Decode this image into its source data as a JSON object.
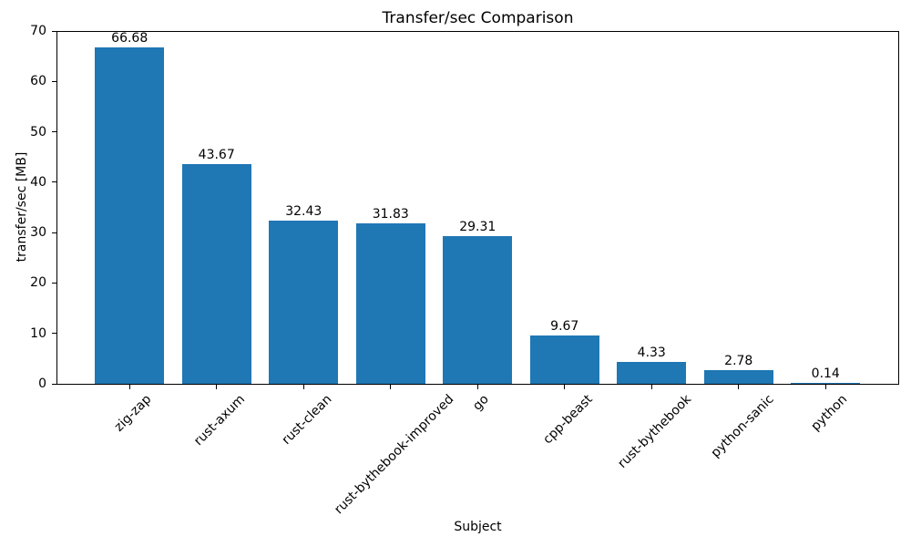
{
  "chart_data": {
    "type": "bar",
    "title": "Transfer/sec Comparison",
    "xlabel": "Subject",
    "ylabel": "transfer/sec [MB]",
    "categories": [
      "zig-zap",
      "rust-axum",
      "rust-clean",
      "rust-bythebook-improved",
      "go",
      "cpp-beast",
      "rust-bythebook",
      "python-sanic",
      "python"
    ],
    "values": [
      66.68,
      43.67,
      32.43,
      31.83,
      29.31,
      9.67,
      4.33,
      2.78,
      0.14
    ],
    "value_labels": [
      "66.68",
      "43.67",
      "32.43",
      "31.83",
      "29.31",
      "9.67",
      "4.33",
      "2.78",
      "0.14"
    ],
    "ylim": [
      0,
      70
    ],
    "yticks": [
      0,
      10,
      20,
      30,
      40,
      50,
      60,
      70
    ],
    "bar_color": "#1f77b4",
    "bar_width_fraction": 0.8,
    "grid": false,
    "legend": "none"
  }
}
